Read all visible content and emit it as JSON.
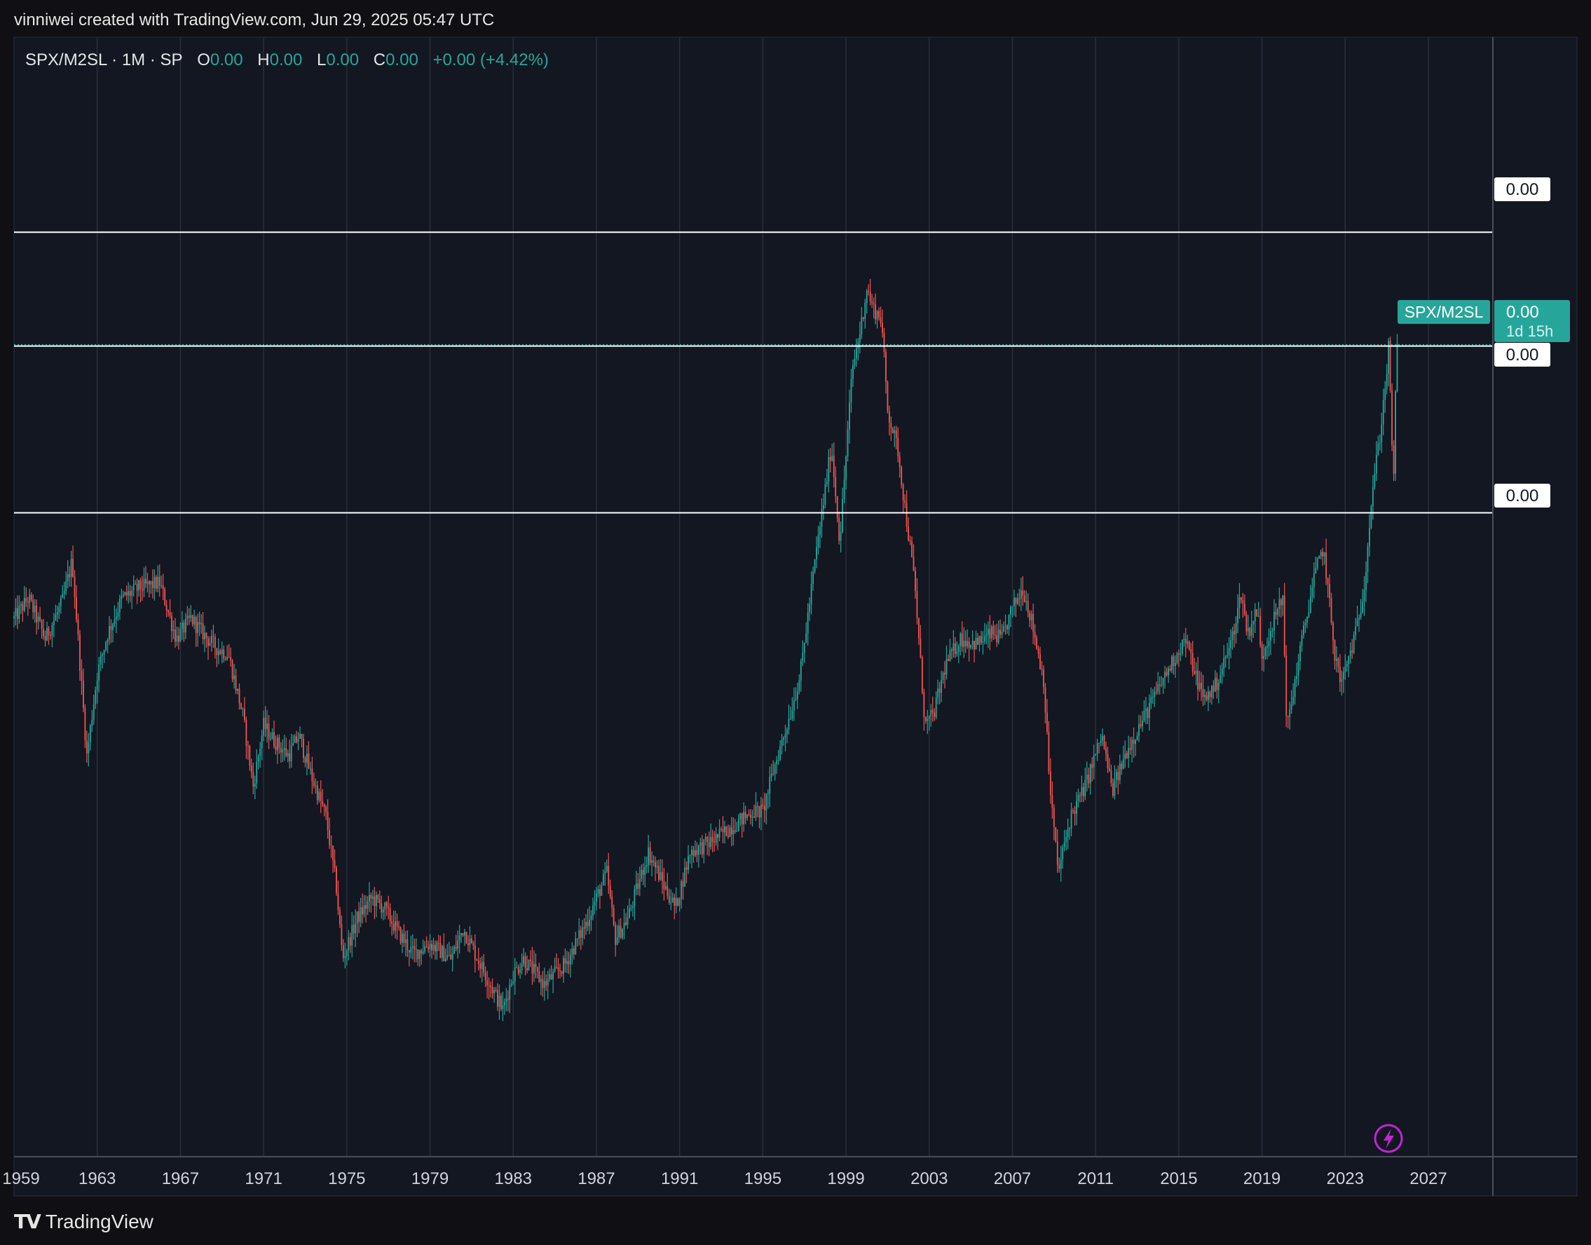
{
  "attribution": "vinniwei created with TradingView.com, Jun 29, 2025 05:47 UTC",
  "legend": {
    "symbol": "SPX/M2SL · 1M · SP",
    "open_label": "O",
    "open_value": "0.00",
    "high_label": "H",
    "high_value": "0.00",
    "low_label": "L",
    "low_value": "0.00",
    "close_label": "C",
    "close_value": "0.00",
    "change": "+0.00 (+4.42%)"
  },
  "price_tags": {
    "top_line": "0.00",
    "current_name": "SPX/M2SL",
    "current_value": "0.00",
    "countdown": "1d 15h",
    "below_current": "0.00",
    "lower_line": "0.00"
  },
  "branding": {
    "logo_text": "TradingView",
    "logo_mark": "TV"
  },
  "icons": {
    "flash": "lightning-icon"
  },
  "colors": {
    "up": "#26a69a",
    "down": "#ef5350",
    "background": "#131722",
    "grid": "#2a2e39",
    "horizontal_lines": "#ffffff",
    "flash_icon": "#c026d3"
  },
  "chart_data": {
    "type": "candlestick",
    "title": "SPX/M2SL · 1M · SP",
    "y_axis_labels_shown": [
      "0.00",
      "0.00",
      "0.00",
      "0.00"
    ],
    "x_tick_labels": [
      "1959",
      "1963",
      "1967",
      "1971",
      "1975",
      "1979",
      "1983",
      "1987",
      "1991",
      "1995",
      "1999",
      "2003",
      "2007",
      "2011",
      "2015",
      "2019",
      "2023",
      "2027"
    ],
    "xlim": [
      1959.0,
      2030.1
    ],
    "ylim": [
      0,
      100
    ],
    "horizontal_levels": [
      87.5,
      76.3,
      59.9
    ],
    "current_level": 76.3,
    "grid": "vertical",
    "note_values": "y values estimated as 0-100 relative scale (axis prints 0.00)",
    "anchors": [
      [
        1959.0,
        49.5
      ],
      [
        1959.7,
        51.5
      ],
      [
        1960.5,
        47.5
      ],
      [
        1961.3,
        51.0
      ],
      [
        1961.8,
        55.2
      ],
      [
        1962.5,
        36.0
      ],
      [
        1963.0,
        44.0
      ],
      [
        1963.5,
        48.0
      ],
      [
        1964.2,
        51.5
      ],
      [
        1965.0,
        52.5
      ],
      [
        1966.0,
        53.0
      ],
      [
        1966.8,
        47.5
      ],
      [
        1967.5,
        49.5
      ],
      [
        1968.3,
        47.5
      ],
      [
        1968.8,
        46.5
      ],
      [
        1969.3,
        46.0
      ],
      [
        1970.0,
        40.0
      ],
      [
        1970.5,
        33.0
      ],
      [
        1971.0,
        39.0
      ],
      [
        1971.5,
        37.5
      ],
      [
        1972.2,
        36.0
      ],
      [
        1972.7,
        38.0
      ],
      [
        1973.3,
        34.0
      ],
      [
        1974.0,
        30.0
      ],
      [
        1974.5,
        23.0
      ],
      [
        1974.8,
        16.0
      ],
      [
        1975.5,
        20.0
      ],
      [
        1976.2,
        22.0
      ],
      [
        1976.8,
        21.0
      ],
      [
        1977.5,
        18.5
      ],
      [
        1978.2,
        16.5
      ],
      [
        1979.0,
        17.5
      ],
      [
        1980.0,
        16.0
      ],
      [
        1980.6,
        19.0
      ],
      [
        1981.3,
        16.0
      ],
      [
        1982.5,
        11.0
      ],
      [
        1983.0,
        14.5
      ],
      [
        1983.5,
        16.0
      ],
      [
        1984.5,
        13.5
      ],
      [
        1985.5,
        15.5
      ],
      [
        1986.5,
        19.5
      ],
      [
        1987.5,
        24.5
      ],
      [
        1987.9,
        18.0
      ],
      [
        1988.5,
        20.0
      ],
      [
        1989.5,
        26.5
      ],
      [
        1990.3,
        23.0
      ],
      [
        1990.8,
        21.0
      ],
      [
        1991.5,
        26.5
      ],
      [
        1992.5,
        27.5
      ],
      [
        1993.5,
        29.0
      ],
      [
        1994.5,
        30.5
      ],
      [
        1995.0,
        30.5
      ],
      [
        1995.5,
        34.5
      ],
      [
        1996.3,
        40.0
      ],
      [
        1996.8,
        44.0
      ],
      [
        1997.5,
        55.0
      ],
      [
        1998.3,
        66.5
      ],
      [
        1998.7,
        57.0
      ],
      [
        1999.3,
        74.0
      ],
      [
        1999.7,
        78.0
      ],
      [
        2000.0,
        82.0
      ],
      [
        2000.3,
        80.0
      ],
      [
        2000.7,
        79.0
      ],
      [
        2001.0,
        70.0
      ],
      [
        2001.5,
        66.0
      ],
      [
        2001.8,
        61.0
      ],
      [
        2002.3,
        53.0
      ],
      [
        2002.8,
        39.0
      ],
      [
        2003.2,
        40.0
      ],
      [
        2003.8,
        45.0
      ],
      [
        2004.5,
        47.5
      ],
      [
        2005.3,
        47.0
      ],
      [
        2006.0,
        48.0
      ],
      [
        2006.5,
        47.5
      ],
      [
        2007.0,
        50.5
      ],
      [
        2007.5,
        52.5
      ],
      [
        2007.9,
        49.5
      ],
      [
        2008.5,
        43.5
      ],
      [
        2008.8,
        33.0
      ],
      [
        2009.2,
        24.5
      ],
      [
        2009.8,
        30.0
      ],
      [
        2010.5,
        33.0
      ],
      [
        2011.3,
        38.0
      ],
      [
        2011.8,
        32.5
      ],
      [
        2012.5,
        36.5
      ],
      [
        2013.5,
        40.5
      ],
      [
        2014.5,
        44.5
      ],
      [
        2015.3,
        47.5
      ],
      [
        2015.8,
        44.0
      ],
      [
        2016.2,
        41.5
      ],
      [
        2016.8,
        43.0
      ],
      [
        2017.5,
        47.0
      ],
      [
        2018.0,
        52.0
      ],
      [
        2018.3,
        48.0
      ],
      [
        2018.8,
        50.5
      ],
      [
        2018.95,
        45.5
      ],
      [
        2019.5,
        49.0
      ],
      [
        2020.0,
        51.5
      ],
      [
        2020.2,
        38.5
      ],
      [
        2020.8,
        46.0
      ],
      [
        2021.5,
        53.5
      ],
      [
        2021.95,
        56.5
      ],
      [
        2022.5,
        46.0
      ],
      [
        2022.8,
        43.0
      ],
      [
        2023.5,
        48.0
      ],
      [
        2023.9,
        52.5
      ],
      [
        2024.3,
        62.0
      ],
      [
        2024.7,
        68.0
      ],
      [
        2025.0,
        74.0
      ],
      [
        2025.1,
        76.5
      ],
      [
        2025.2,
        70.0
      ],
      [
        2025.3,
        61.5
      ],
      [
        2025.4,
        70.0
      ],
      [
        2025.5,
        76.3
      ]
    ]
  }
}
